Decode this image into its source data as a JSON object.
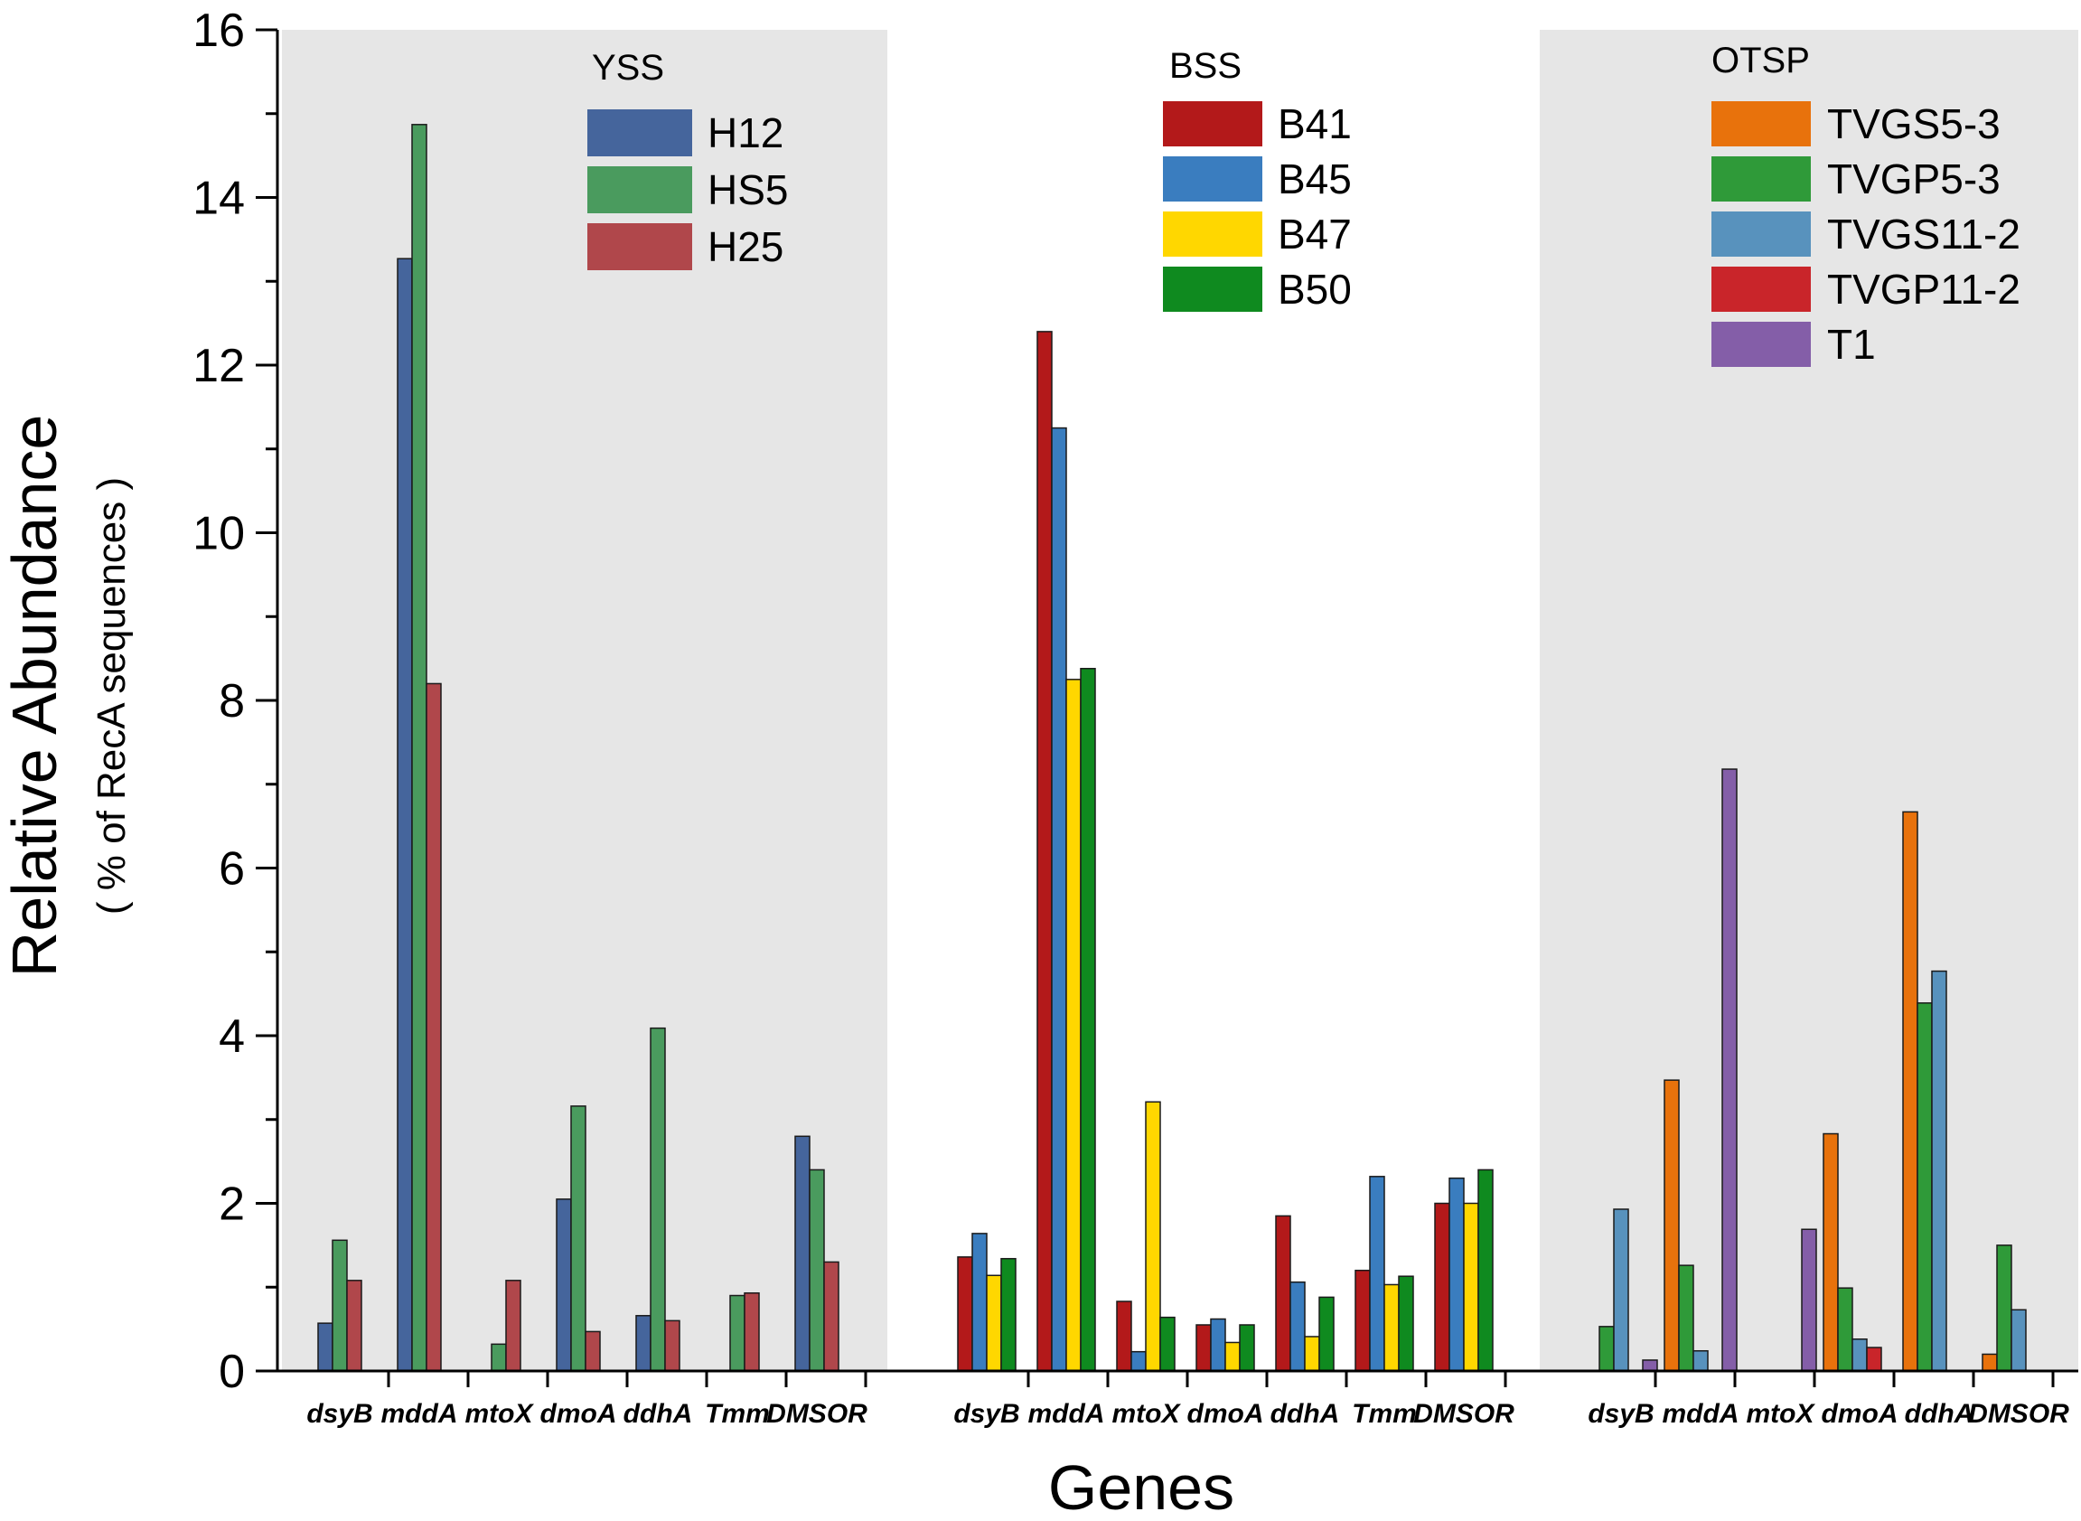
{
  "chart_data": {
    "type": "bar",
    "xlabel": "Genes",
    "ylabel": "Relative Abundance",
    "ylabel_sub": "( % of RecA sequences )",
    "ylim": [
      0,
      16
    ],
    "yticks": [
      0,
      2,
      4,
      6,
      8,
      10,
      12,
      14,
      16
    ],
    "grid": false,
    "groups": [
      {
        "name": "YSS",
        "shaded": true,
        "legend_position": "top-center",
        "genes": [
          "dsyB",
          "mddA",
          "mtoX",
          "dmoA",
          "ddhA",
          "Tmm",
          "DMSOR"
        ],
        "series": [
          {
            "name": "H12",
            "color": "#45659c",
            "values": [
              0.57,
              13.27,
              0,
              2.05,
              0.66,
              0,
              2.8
            ]
          },
          {
            "name": "HS5",
            "color": "#4a9b5e",
            "values": [
              1.56,
              14.87,
              0.32,
              3.16,
              4.09,
              0.9,
              2.4
            ]
          },
          {
            "name": "H25",
            "color": "#b0474b",
            "values": [
              1.08,
              8.2,
              1.08,
              0.47,
              0.6,
              0.93,
              1.3
            ]
          }
        ]
      },
      {
        "name": "BSS",
        "shaded": false,
        "legend_position": "top-center",
        "genes": [
          "dsyB",
          "mddA",
          "mtoX",
          "dmoA",
          "ddhA",
          "Tmm",
          "DMSOR"
        ],
        "series": [
          {
            "name": "B41",
            "color": "#b3191a",
            "values": [
              1.36,
              12.4,
              0.83,
              0.55,
              1.85,
              1.2,
              2.0
            ]
          },
          {
            "name": "B45",
            "color": "#3a7dbf",
            "values": [
              1.64,
              11.25,
              0.23,
              0.62,
              1.06,
              2.32,
              2.3
            ]
          },
          {
            "name": "B47",
            "color": "#ffd700",
            "values": [
              1.14,
              8.25,
              3.21,
              0.34,
              0.41,
              1.03,
              2.0
            ]
          },
          {
            "name": "B50",
            "color": "#0f8a1f",
            "values": [
              1.34,
              8.38,
              0.64,
              0.55,
              0.88,
              1.13,
              2.4
            ]
          }
        ]
      },
      {
        "name": "OTSP",
        "shaded": true,
        "legend_position": "top-right",
        "genes": [
          "dsyB",
          "mddA",
          "mtoX",
          "dmoA",
          "ddhA",
          "DMSOR"
        ],
        "series": [
          {
            "name": "TVGS5-3",
            "color": "#e8720c",
            "values": [
              0,
              3.47,
              0,
              2.83,
              6.67,
              0.2
            ]
          },
          {
            "name": "TVGP5-3",
            "color": "#2f9a39",
            "values": [
              0.53,
              1.26,
              0,
              0.99,
              4.39,
              1.5
            ]
          },
          {
            "name": "TVGS11-2",
            "color": "#5892bd",
            "values": [
              1.93,
              0.24,
              0,
              0.38,
              4.77,
              0.73
            ]
          },
          {
            "name": "TVGP11-2",
            "color": "#c9252a",
            "values": [
              0,
              0,
              0,
              0.28,
              0,
              0
            ]
          },
          {
            "name": "T1",
            "color": "#845ea8",
            "values": [
              0.13,
              7.18,
              1.69,
              0,
              0,
              0
            ]
          }
        ]
      }
    ]
  }
}
